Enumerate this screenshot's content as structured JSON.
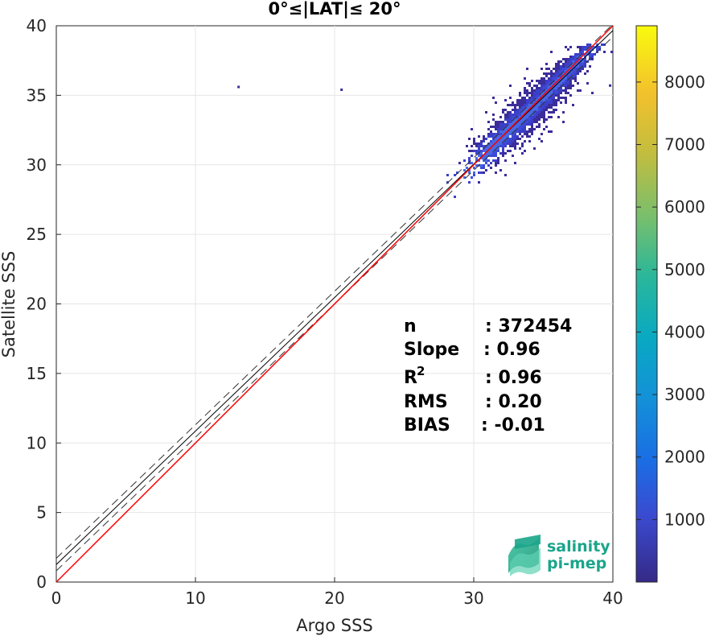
{
  "chart_data": {
    "type": "heatmap",
    "title": "0°≤|LAT|≤ 20°",
    "xlabel": "Argo SSS",
    "ylabel": "Satellite SSS",
    "xlim": [
      0,
      40
    ],
    "ylim": [
      0,
      40
    ],
    "xticks": [
      "0",
      "10",
      "20",
      "30",
      "40"
    ],
    "yticks": [
      "0",
      "5",
      "10",
      "15",
      "20",
      "25",
      "30",
      "35",
      "40"
    ],
    "grid": true,
    "colorbar": {
      "range": [
        0,
        8900
      ],
      "ticks": [
        "1000",
        "2000",
        "3000",
        "4000",
        "5000",
        "6000",
        "7000",
        "8000"
      ],
      "colormap": "parula"
    },
    "stats": [
      {
        "label": "n",
        "value": ": 372454"
      },
      {
        "label": "Slope",
        "value": ": 0.96"
      },
      {
        "label": "R",
        "sup": "2",
        "value": ": 0.96"
      },
      {
        "label": "RMS",
        "value": ": 0.20"
      },
      {
        "label": "BIAS",
        "value": ": -0.01"
      }
    ],
    "lines": {
      "one_to_one": {
        "color": "#ff0000",
        "from": [
          0,
          0
        ],
        "to": [
          40,
          40
        ]
      },
      "fit": {
        "color": "#000000",
        "slope": 0.96,
        "intercept": 1.26
      },
      "fit_envelope_offset": 0.45
    },
    "density_cloud": {
      "center": [
        34.5,
        34.5
      ],
      "x_range": [
        28,
        39
      ],
      "y_range": [
        27.3,
        38.8
      ]
    },
    "outliers": [
      [
        13.1,
        35.6
      ],
      [
        20.5,
        35.4
      ],
      [
        39.8,
        35.7
      ]
    ],
    "logo": {
      "line1": "salinity",
      "line2": "pi-mep"
    }
  }
}
